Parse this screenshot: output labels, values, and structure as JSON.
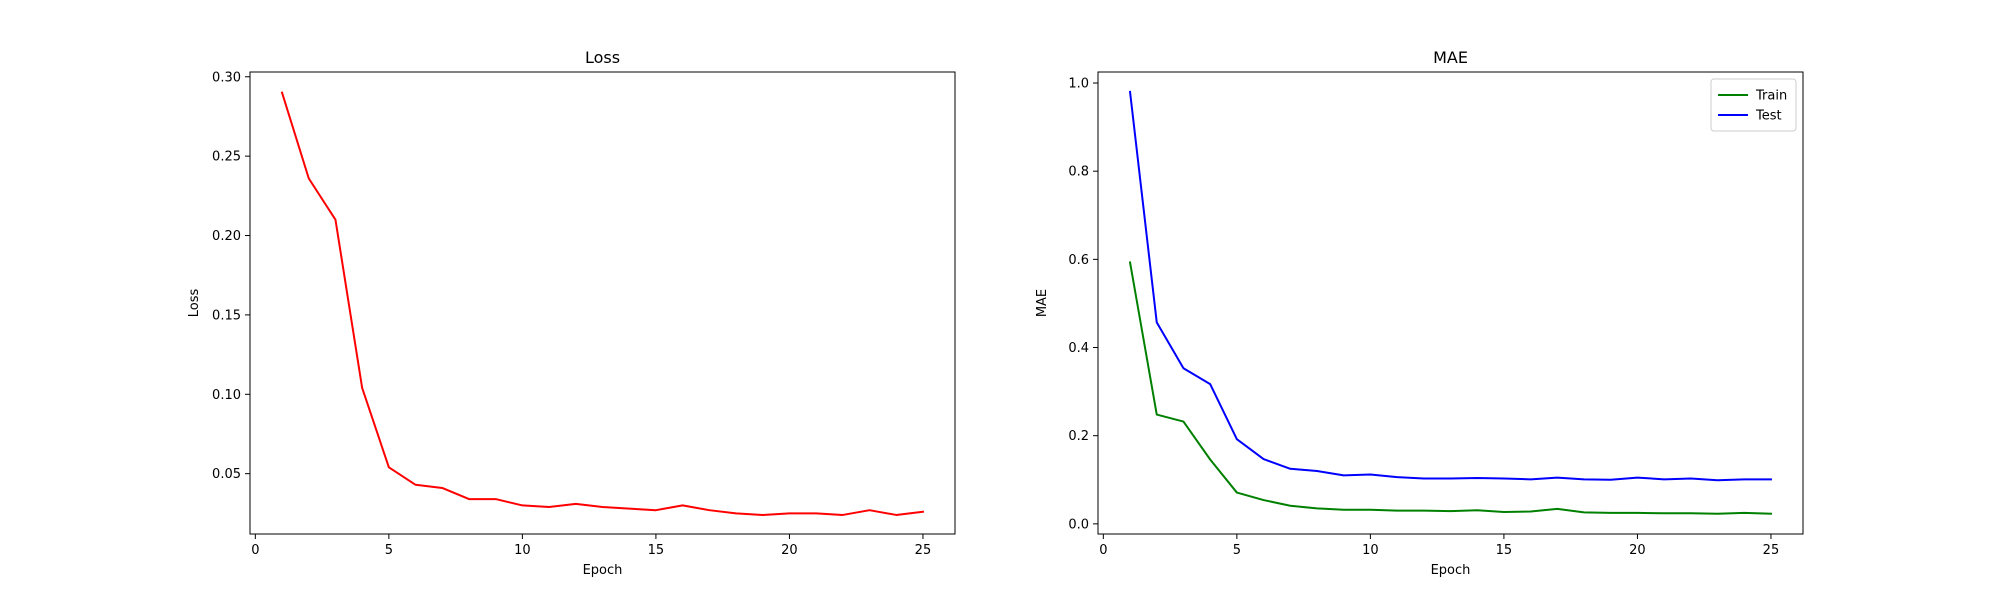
{
  "chart_data": [
    {
      "type": "line",
      "title": "Loss",
      "xlabel": "Epoch",
      "ylabel": "Loss",
      "xlim": [
        -0.2,
        26.2
      ],
      "ylim": [
        0.012,
        0.303
      ],
      "xticks": [
        0,
        5,
        10,
        15,
        20,
        25
      ],
      "yticks": [
        0.05,
        0.1,
        0.15,
        0.2,
        0.25,
        0.3
      ],
      "ytick_labels": [
        "0.05",
        "0.10",
        "0.15",
        "0.20",
        "0.25",
        "0.30"
      ],
      "grid": false,
      "legend": null,
      "x": [
        1,
        2,
        3,
        4,
        5,
        6,
        7,
        8,
        9,
        10,
        11,
        12,
        13,
        14,
        15,
        16,
        17,
        18,
        19,
        20,
        21,
        22,
        23,
        24,
        25
      ],
      "series": [
        {
          "color": "#ff0000",
          "values": [
            0.29,
            0.236,
            0.21,
            0.104,
            0.054,
            0.043,
            0.041,
            0.034,
            0.034,
            0.03,
            0.029,
            0.031,
            0.029,
            0.028,
            0.027,
            0.03,
            0.027,
            0.025,
            0.024,
            0.025,
            0.025,
            0.024,
            0.027,
            0.024,
            0.026
          ]
        }
      ]
    },
    {
      "type": "line",
      "title": "MAE",
      "xlabel": "Epoch",
      "ylabel": "MAE",
      "xlim": [
        -0.2,
        26.2
      ],
      "ylim": [
        -0.023,
        1.025
      ],
      "xticks": [
        0,
        5,
        10,
        15,
        20,
        25
      ],
      "yticks": [
        0.0,
        0.2,
        0.4,
        0.6,
        0.8,
        1.0
      ],
      "ytick_labels": [
        "0.0",
        "0.2",
        "0.4",
        "0.6",
        "0.8",
        "1.0"
      ],
      "grid": false,
      "legend": "top-right",
      "x": [
        1,
        2,
        3,
        4,
        5,
        6,
        7,
        8,
        9,
        10,
        11,
        12,
        13,
        14,
        15,
        16,
        17,
        18,
        19,
        20,
        21,
        22,
        23,
        24,
        25
      ],
      "series": [
        {
          "name": "Train",
          "color": "#008000",
          "values": [
            0.593,
            0.248,
            0.232,
            0.146,
            0.071,
            0.054,
            0.041,
            0.035,
            0.032,
            0.032,
            0.03,
            0.03,
            0.029,
            0.031,
            0.027,
            0.028,
            0.034,
            0.026,
            0.025,
            0.025,
            0.024,
            0.024,
            0.023,
            0.025,
            0.023
          ]
        },
        {
          "name": "Test",
          "color": "#0000ff",
          "values": [
            0.98,
            0.457,
            0.353,
            0.317,
            0.192,
            0.147,
            0.125,
            0.12,
            0.11,
            0.112,
            0.106,
            0.103,
            0.103,
            0.104,
            0.103,
            0.101,
            0.105,
            0.101,
            0.1,
            0.105,
            0.101,
            0.103,
            0.099,
            0.101,
            0.101
          ]
        }
      ]
    }
  ]
}
